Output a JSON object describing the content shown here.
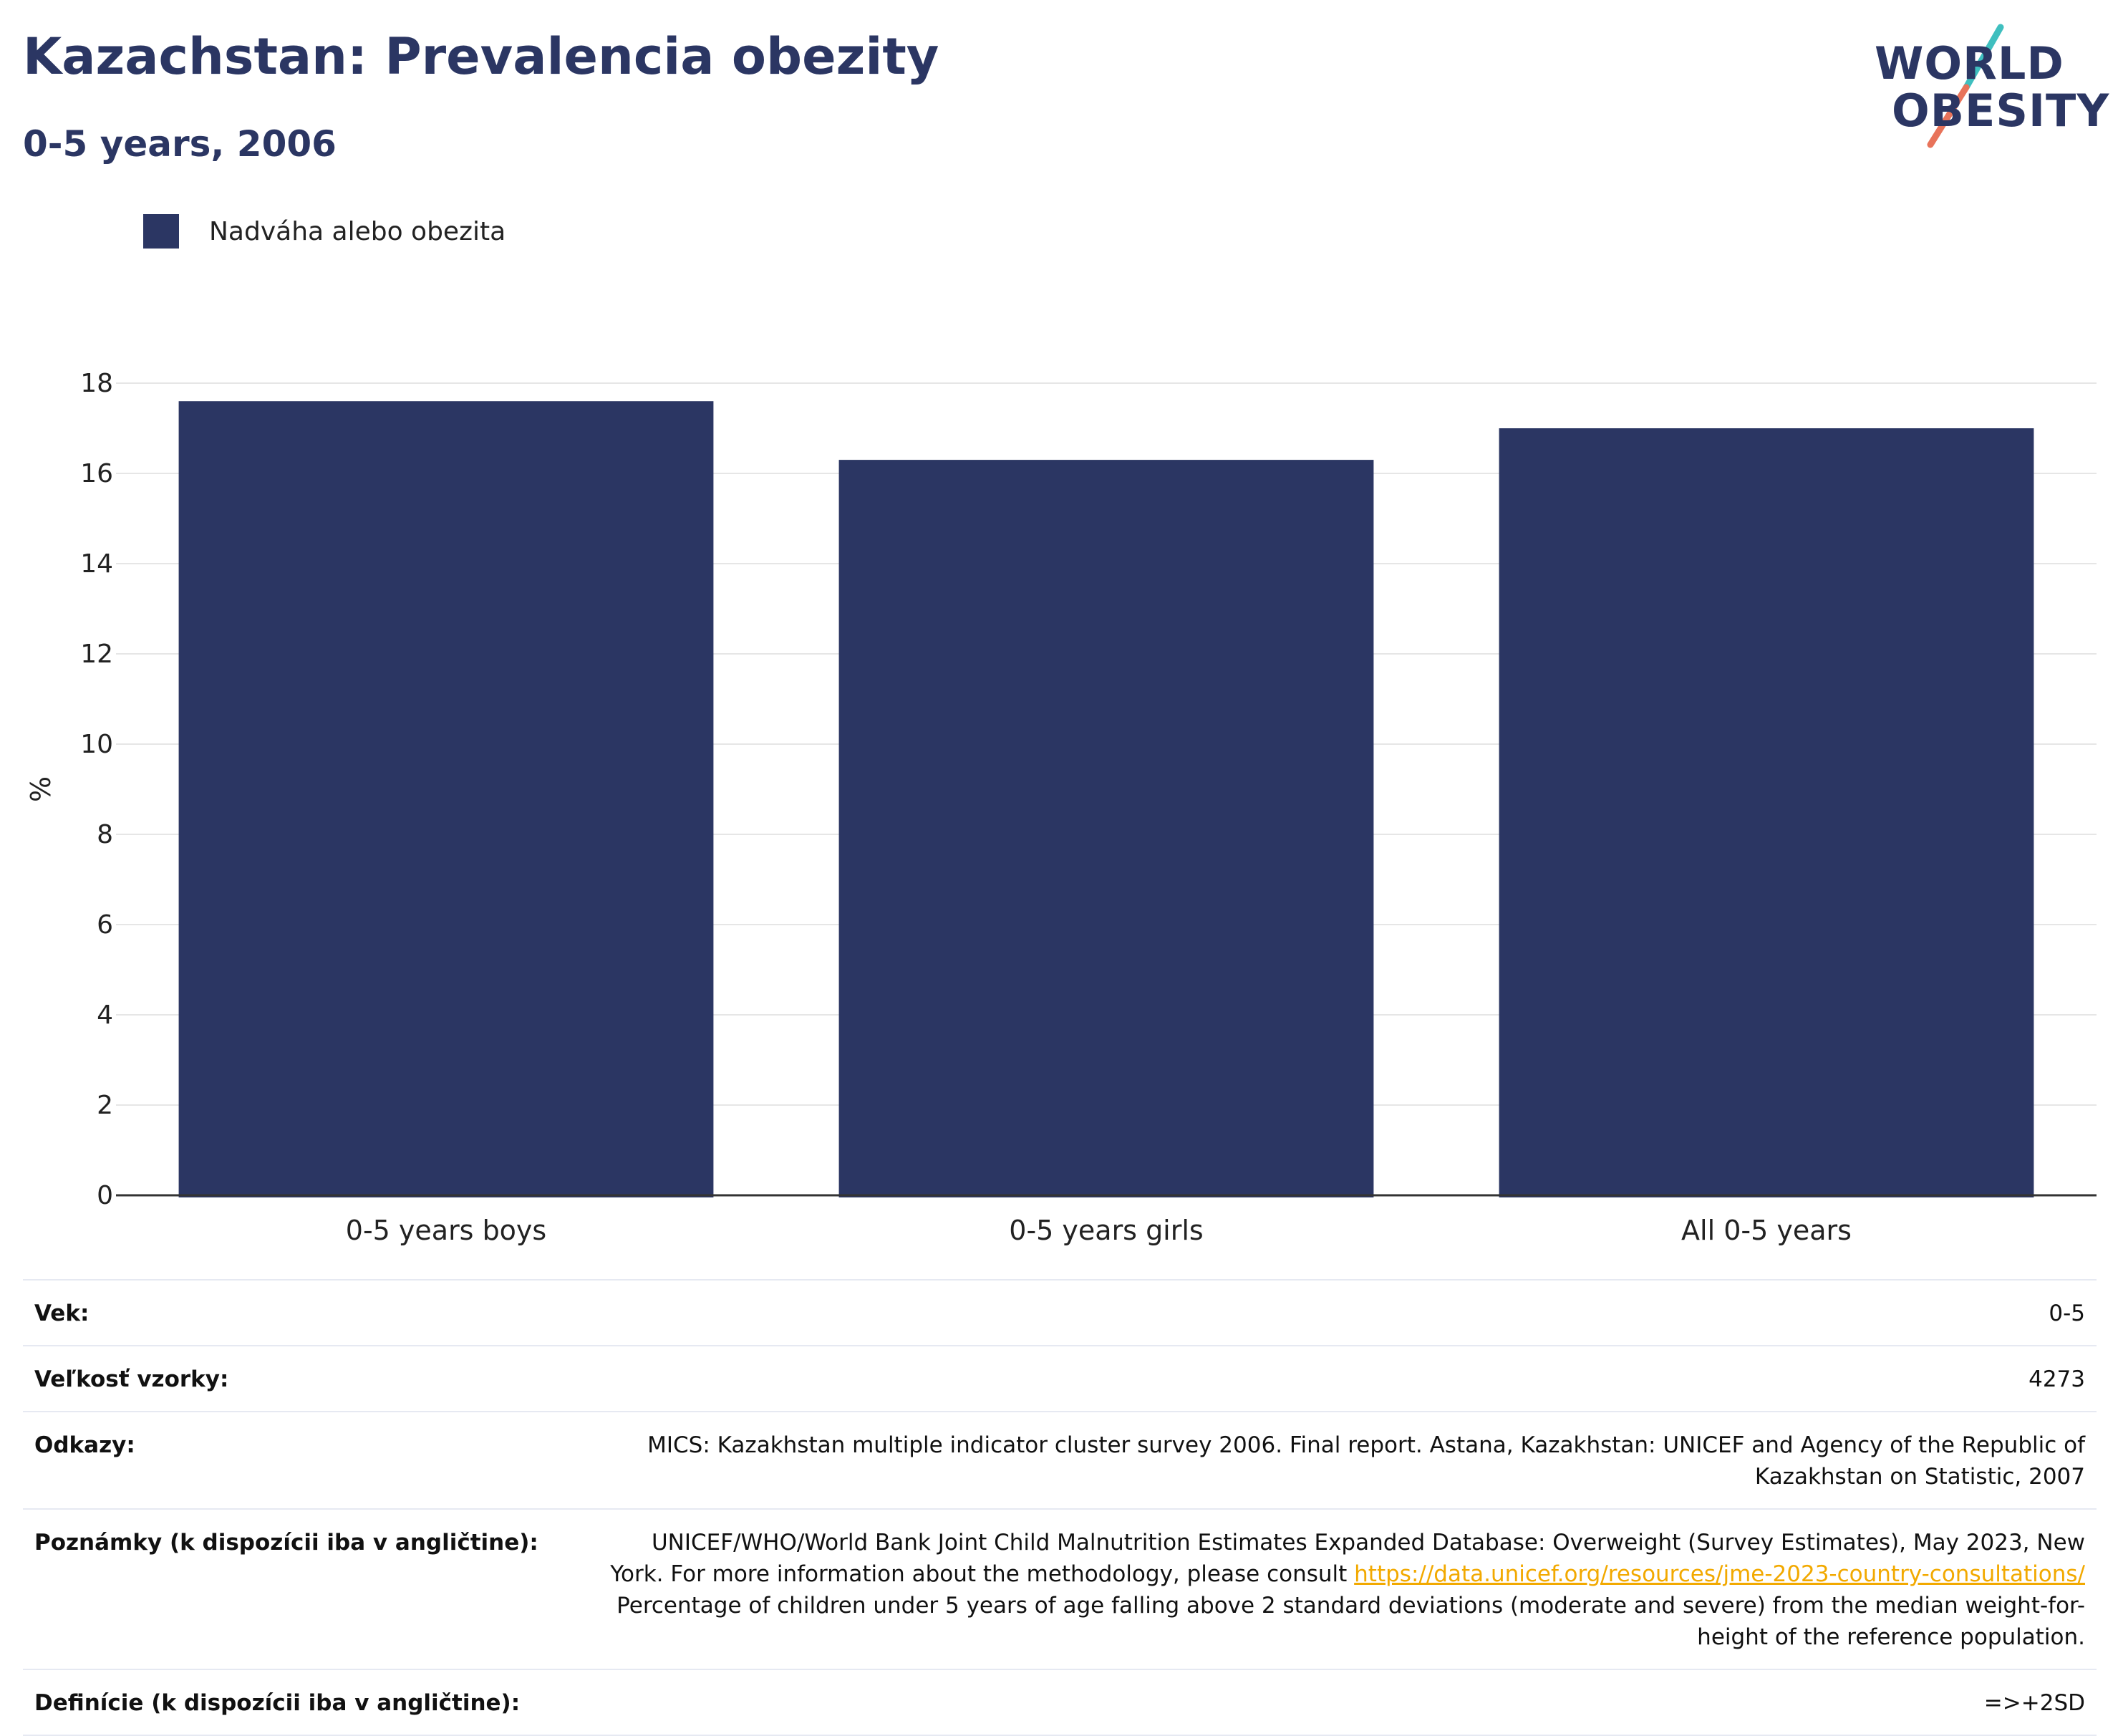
{
  "header": {
    "title": "Kazachstan: Prevalencia obezity",
    "subtitle": "0-5 years, 2006"
  },
  "logo": {
    "line1": "WORLD",
    "line2": "OBESITY",
    "colors": {
      "text": "#2b3663",
      "slash_top": "#3fbfbf",
      "slash_bottom": "#e8735a"
    }
  },
  "legend": {
    "label": "Nadváha alebo obezita",
    "color": "#2b3663"
  },
  "chart_data": {
    "type": "bar",
    "categories": [
      "0-5 years boys",
      "0-5 years girls",
      "All 0-5 years"
    ],
    "series": [
      {
        "name": "Nadváha alebo obezita",
        "values": [
          17.6,
          16.3,
          17.0
        ],
        "color": "#2b3663"
      }
    ],
    "ylabel": "%",
    "ylim": [
      0,
      18
    ],
    "yticks": [
      "0",
      "2",
      "4",
      "6",
      "8",
      "10",
      "12",
      "14",
      "16",
      "18"
    ],
    "grid": true,
    "legend_position": "top-left"
  },
  "meta": {
    "age": {
      "key": "Vek:",
      "value": "0-5"
    },
    "sample": {
      "key": "Veľkosť vzorky:",
      "value": "4273"
    },
    "refs": {
      "key": "Odkazy:",
      "value": "MICS: Kazakhstan multiple indicator cluster survey 2006. Final report. Astana, Kazakhstan: UNICEF and Agency of the Republic of Kazakhstan on Statistic, 2007"
    },
    "notes": {
      "key": "Poznámky (k dispozícii iba v angličtine):",
      "text_before": "UNICEF/WHO/World Bank Joint Child Malnutrition Estimates Expanded Database: Overweight (Survey Estimates), May 2023, New York. For more information about the methodology, please consult ",
      "link": "https://data.unicef.org/resources/jme-2023-country-consultations/",
      "text_after": " Percentage of children under 5 years of age falling above 2 standard deviations (moderate and severe) from the median weight-for-height of the reference population."
    },
    "definitions": {
      "key": "Definície (k dispozícii iba v angličtine):",
      "value": "=>+2SD"
    }
  }
}
